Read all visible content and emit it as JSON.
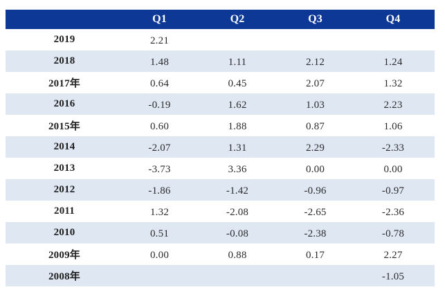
{
  "chart_data": {
    "type": "table",
    "columns": [
      "",
      "Q1",
      "Q2",
      "Q3",
      "Q4"
    ],
    "rows": [
      {
        "year": "2019",
        "values": [
          "2.21",
          "",
          "",
          ""
        ]
      },
      {
        "year": "2018",
        "values": [
          "1.48",
          "1.11",
          "2.12",
          "1.24"
        ]
      },
      {
        "year": "2017年",
        "values": [
          "0.64",
          "0.45",
          "2.07",
          "1.32"
        ]
      },
      {
        "year": "2016",
        "values": [
          "-0.19",
          "1.62",
          "1.03",
          "2.23"
        ]
      },
      {
        "year": "2015年",
        "values": [
          "0.60",
          "1.88",
          "0.87",
          "1.06"
        ]
      },
      {
        "year": "2014",
        "values": [
          "-2.07",
          "1.31",
          "2.29",
          "-2.33"
        ]
      },
      {
        "year": "2013",
        "values": [
          "-3.73",
          "3.36",
          "0.00",
          "0.00"
        ]
      },
      {
        "year": "2012",
        "values": [
          "-1.86",
          "-1.42",
          "-0.96",
          "-0.97"
        ]
      },
      {
        "year": "2011",
        "values": [
          "1.32",
          "-2.08",
          "-2.65",
          "-2.36"
        ]
      },
      {
        "year": "2010",
        "values": [
          "0.51",
          "-0.08",
          "-2.38",
          "-0.78"
        ]
      },
      {
        "year": "2009年",
        "values": [
          "0.00",
          "0.88",
          "0.17",
          "2.27"
        ]
      },
      {
        "year": "2008年",
        "values": [
          "",
          "",
          "",
          "-1.05"
        ]
      }
    ]
  },
  "colors": {
    "header_bg": "#0d3896",
    "header_text": "#ffffff",
    "stripe": "#dfe7f3"
  }
}
